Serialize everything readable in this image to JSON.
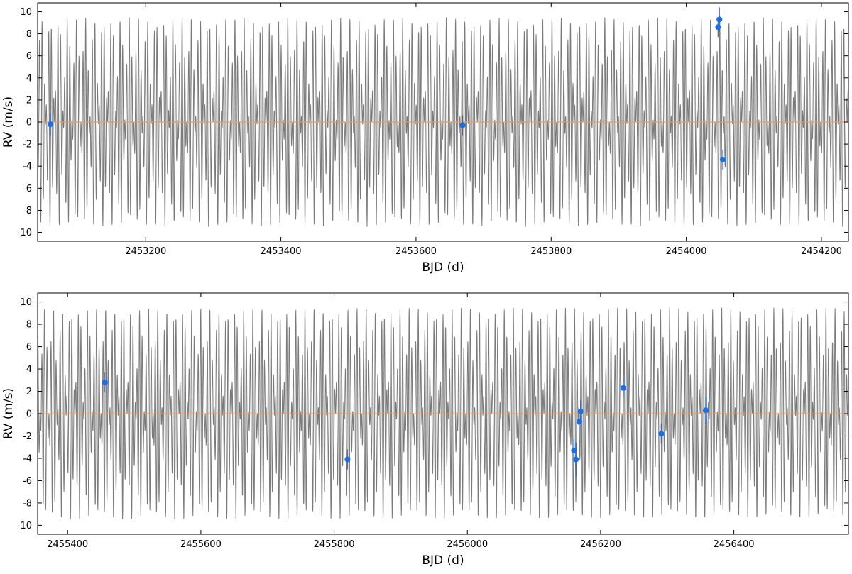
{
  "chart_data": [
    {
      "type": "scatter",
      "title": "",
      "xlabel": "BJD (d)",
      "ylabel": "RV (m/s)",
      "xlim": [
        2453040,
        2454240
      ],
      "ylim": [
        -10.8,
        10.8
      ],
      "xticks": [
        2453200,
        2453400,
        2453600,
        2453800,
        2454000,
        2454200
      ],
      "xtick_labels": [
        "2453200",
        "2453400",
        "2453600",
        "2453800",
        "2454000",
        "2454200"
      ],
      "yticks": [
        -10,
        -8,
        -6,
        -4,
        -2,
        0,
        2,
        4,
        6,
        8,
        10
      ],
      "ytick_labels": [
        "-10",
        "-8",
        "-6",
        "-4",
        "-2",
        "0",
        "2",
        "4",
        "6",
        "8",
        "10"
      ],
      "grid": false,
      "zero_line": 0,
      "model_line": {
        "amplitude": 9.5,
        "periods": [
          3.4,
          4.6
        ],
        "color": "#7a7a7a"
      },
      "colors": {
        "points": "#1a6fe8",
        "zero_line": "#f39a4d",
        "model": "#7a7a7a",
        "axes": "#000000"
      },
      "series": [
        {
          "x": [
            2453059,
            2453669,
            2454047,
            2454049,
            2454054
          ],
          "y": [
            -0.2,
            -0.3,
            8.6,
            9.3,
            -3.4
          ],
          "yerr": [
            1.0,
            0.9,
            0.9,
            1.1,
            0.9
          ]
        }
      ]
    },
    {
      "type": "scatter",
      "title": "",
      "xlabel": "BJD (d)",
      "ylabel": "RV (m/s)",
      "xlim": [
        2455355,
        2456572
      ],
      "ylim": [
        -10.8,
        10.8
      ],
      "xticks": [
        2455400,
        2455600,
        2455800,
        2456000,
        2456200,
        2456400
      ],
      "xtick_labels": [
        "2455400",
        "2455600",
        "2455800",
        "2456000",
        "2456200",
        "2456400"
      ],
      "yticks": [
        -10,
        -8,
        -6,
        -4,
        -2,
        0,
        2,
        4,
        6,
        8,
        10
      ],
      "ytick_labels": [
        "-10",
        "-8",
        "-6",
        "-4",
        "-2",
        "0",
        "2",
        "4",
        "6",
        "8",
        "10"
      ],
      "grid": false,
      "zero_line": 0,
      "model_line": {
        "amplitude": 9.5,
        "periods": [
          3.4,
          4.6
        ],
        "color": "#7a7a7a"
      },
      "colors": {
        "points": "#1a6fe8",
        "zero_line": "#f39a4d",
        "model": "#7a7a7a",
        "axes": "#000000"
      },
      "series": [
        {
          "x": [
            2455456,
            2455820,
            2456160,
            2456163,
            2456168,
            2456170,
            2456234,
            2456291,
            2456358
          ],
          "y": [
            2.8,
            -4.1,
            -3.3,
            -4.1,
            -0.7,
            0.2,
            2.3,
            -1.8,
            0.3
          ],
          "yerr": [
            0.9,
            0.9,
            1.0,
            1.5,
            1.1,
            1.0,
            0.8,
            0.9,
            1.2
          ]
        }
      ]
    }
  ]
}
